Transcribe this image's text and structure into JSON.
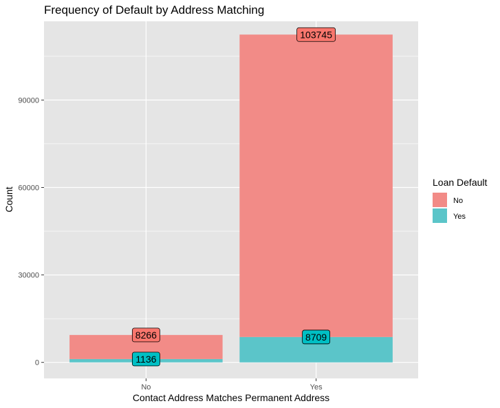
{
  "chart_data": {
    "type": "bar",
    "stacked": true,
    "title": "Frequency of Default by Address Matching",
    "xlabel": "Contact Address Matches Permanent Address",
    "ylabel": "Count",
    "categories": [
      "No",
      "Yes"
    ],
    "ylim": [
      -5500,
      117000
    ],
    "yticks": [
      0,
      30000,
      60000,
      90000
    ],
    "grid": true,
    "legend": {
      "title": "Loan Default",
      "position": "right"
    },
    "series": [
      {
        "name": "Yes",
        "color": "#5bc5c9",
        "values": [
          1136,
          8709
        ]
      },
      {
        "name": "No",
        "color": "#f28b87",
        "values": [
          8266,
          103745
        ]
      }
    ],
    "label_colors": {
      "No": "#f8766d",
      "Yes": "#00bfc4"
    }
  }
}
